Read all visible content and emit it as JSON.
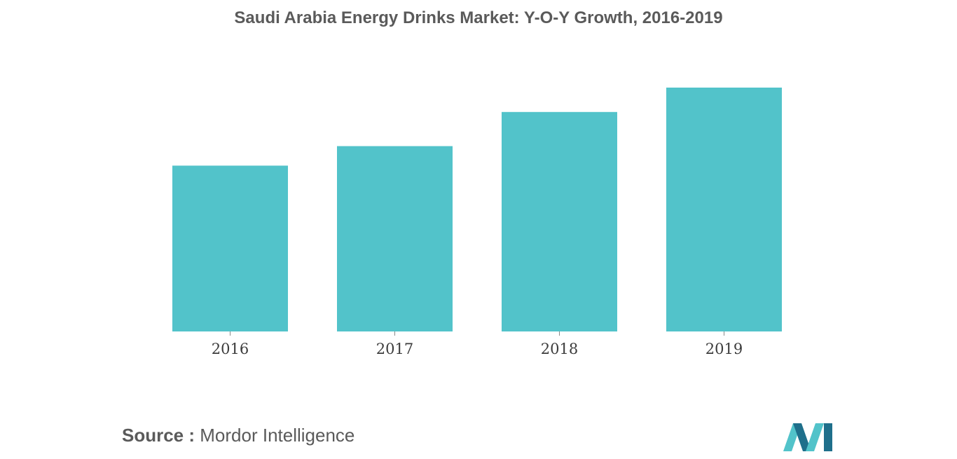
{
  "title": "Saudi Arabia Energy Drinks Market: Y-O-Y Growth, 2016-2019",
  "chart_data": {
    "type": "bar",
    "title": "Saudi Arabia Energy Drinks Market: Y-O-Y Growth, 2016-2019",
    "xlabel": "",
    "ylabel": "",
    "categories": [
      "2016",
      "2017",
      "2018",
      "2019"
    ],
    "values": [
      68,
      76,
      90,
      100
    ],
    "ylim": [
      0,
      100
    ],
    "grid": false,
    "legend": "none",
    "bar_color": "#52c3ca"
  },
  "source": {
    "label": "Source :",
    "text": "Mordor Intelligence"
  },
  "colors": {
    "bar": "#52c3ca",
    "title": "#5a5a5a",
    "logo_dark": "#1f6f8b",
    "logo_light": "#52c3ca"
  }
}
